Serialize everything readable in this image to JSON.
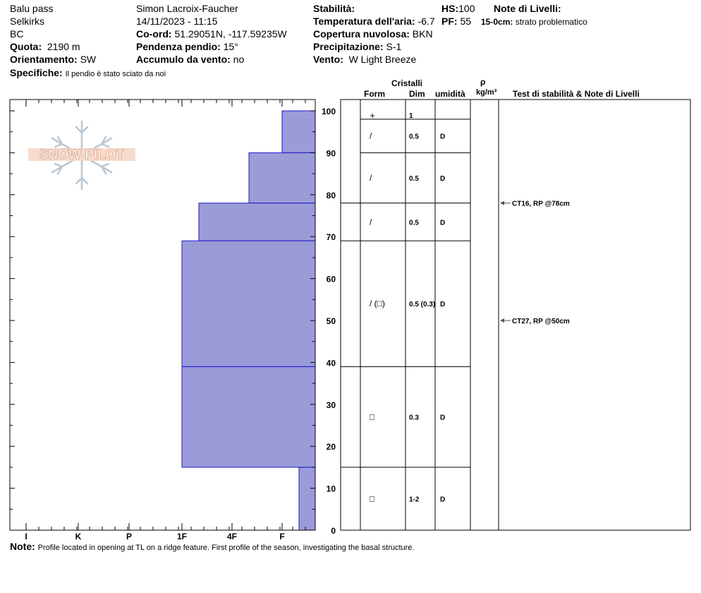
{
  "header": {
    "location": "Balu pass",
    "range": "Selkirks",
    "region": "BC",
    "elevation_label": "Quota:",
    "elevation": "2190 m",
    "aspect_label": "Orientamento:",
    "aspect": "SW",
    "observer": "Simon Lacroix-Faucher",
    "datetime": "14/11/2023 - 11:15",
    "coords_label": "Co-ord:",
    "coords": "51.29051N, -117.59235W",
    "slope_label": "Pendenza pendio:",
    "slope": "15°",
    "wind_loading_label": "Accumulo da vento:",
    "wind_loading": "no",
    "stability_label": "Stabilità:",
    "air_temp_label": "Temperatura dell'aria:",
    "air_temp": "-6.7",
    "sky_label": "Copertura nuvolosa:",
    "sky": "BKN",
    "precip_label": "Precipitazione:",
    "precip": "S-1",
    "wind_label": "Vento:",
    "wind": "W Light Breeze",
    "hs_label": "HS:",
    "hs": "100",
    "pf_label": "PF:",
    "pf": "55",
    "layer_notes_label": "Note di Livelli:",
    "layer_note_depth": "15-0cm:",
    "layer_note_text": "strato problematico",
    "specifics_label": "Specifiche:",
    "specifics": "Il pendio è stato sciato da noi"
  },
  "logo": {
    "text": "SNOW PILOT"
  },
  "columns": {
    "crystals": "Cristalli",
    "form": "Form",
    "size": "Dim",
    "moisture": "umidità",
    "density_symbol": "ρ",
    "density_unit": "kg/m³",
    "tests": "Test di stabilità & Note di Livelli"
  },
  "footer": {
    "note_label": "Note:",
    "note": "Profile located in opening at TL on a ridge feature. First profile of the season, investigating the basal structure."
  },
  "chart_data": {
    "type": "bar",
    "hardness_axis": [
      "I",
      "K",
      "P",
      "1F",
      "4F",
      "F"
    ],
    "height_ticks": [
      0,
      10,
      20,
      30,
      40,
      50,
      60,
      70,
      80,
      90,
      100
    ],
    "ylim": [
      0,
      100
    ],
    "hand_hardness_layers": [
      {
        "top": 100,
        "bottom": 90,
        "hardness": "F"
      },
      {
        "top": 90,
        "bottom": 78,
        "hardness": "4F+"
      },
      {
        "top": 78,
        "bottom": 69,
        "hardness": "1F+"
      },
      {
        "top": 69,
        "bottom": 39,
        "hardness": "1F"
      },
      {
        "top": 39,
        "bottom": 15,
        "hardness": "1F"
      },
      {
        "top": 15,
        "bottom": 0,
        "hardness": "F+"
      }
    ],
    "crystal_layers": [
      {
        "top": 100,
        "bottom": 98,
        "form": "+",
        "size": "1",
        "moisture": ""
      },
      {
        "top": 98,
        "bottom": 90,
        "form": "/",
        "size": "0.5",
        "moisture": "D"
      },
      {
        "top": 90,
        "bottom": 78,
        "form": "/",
        "size": "0.5",
        "moisture": "D"
      },
      {
        "top": 78,
        "bottom": 69,
        "form": "/",
        "size": "0.5",
        "moisture": "D"
      },
      {
        "top": 69,
        "bottom": 39,
        "form": "/ (□)",
        "size": "0.5 (0.3)",
        "moisture": "D"
      },
      {
        "top": 39,
        "bottom": 15,
        "form": "□",
        "size": "0.3",
        "moisture": "D"
      },
      {
        "top": 15,
        "bottom": 0,
        "form": "□",
        "size": "1-2",
        "moisture": "D"
      }
    ],
    "stability_tests": [
      {
        "height": 78,
        "label": "CT16, RP @78cm"
      },
      {
        "height": 50,
        "label": "CT27, RP @50cm"
      }
    ],
    "colors": {
      "fill": "#9b9bd8",
      "outline": "#1a1acc",
      "arrow": "#555555"
    }
  }
}
